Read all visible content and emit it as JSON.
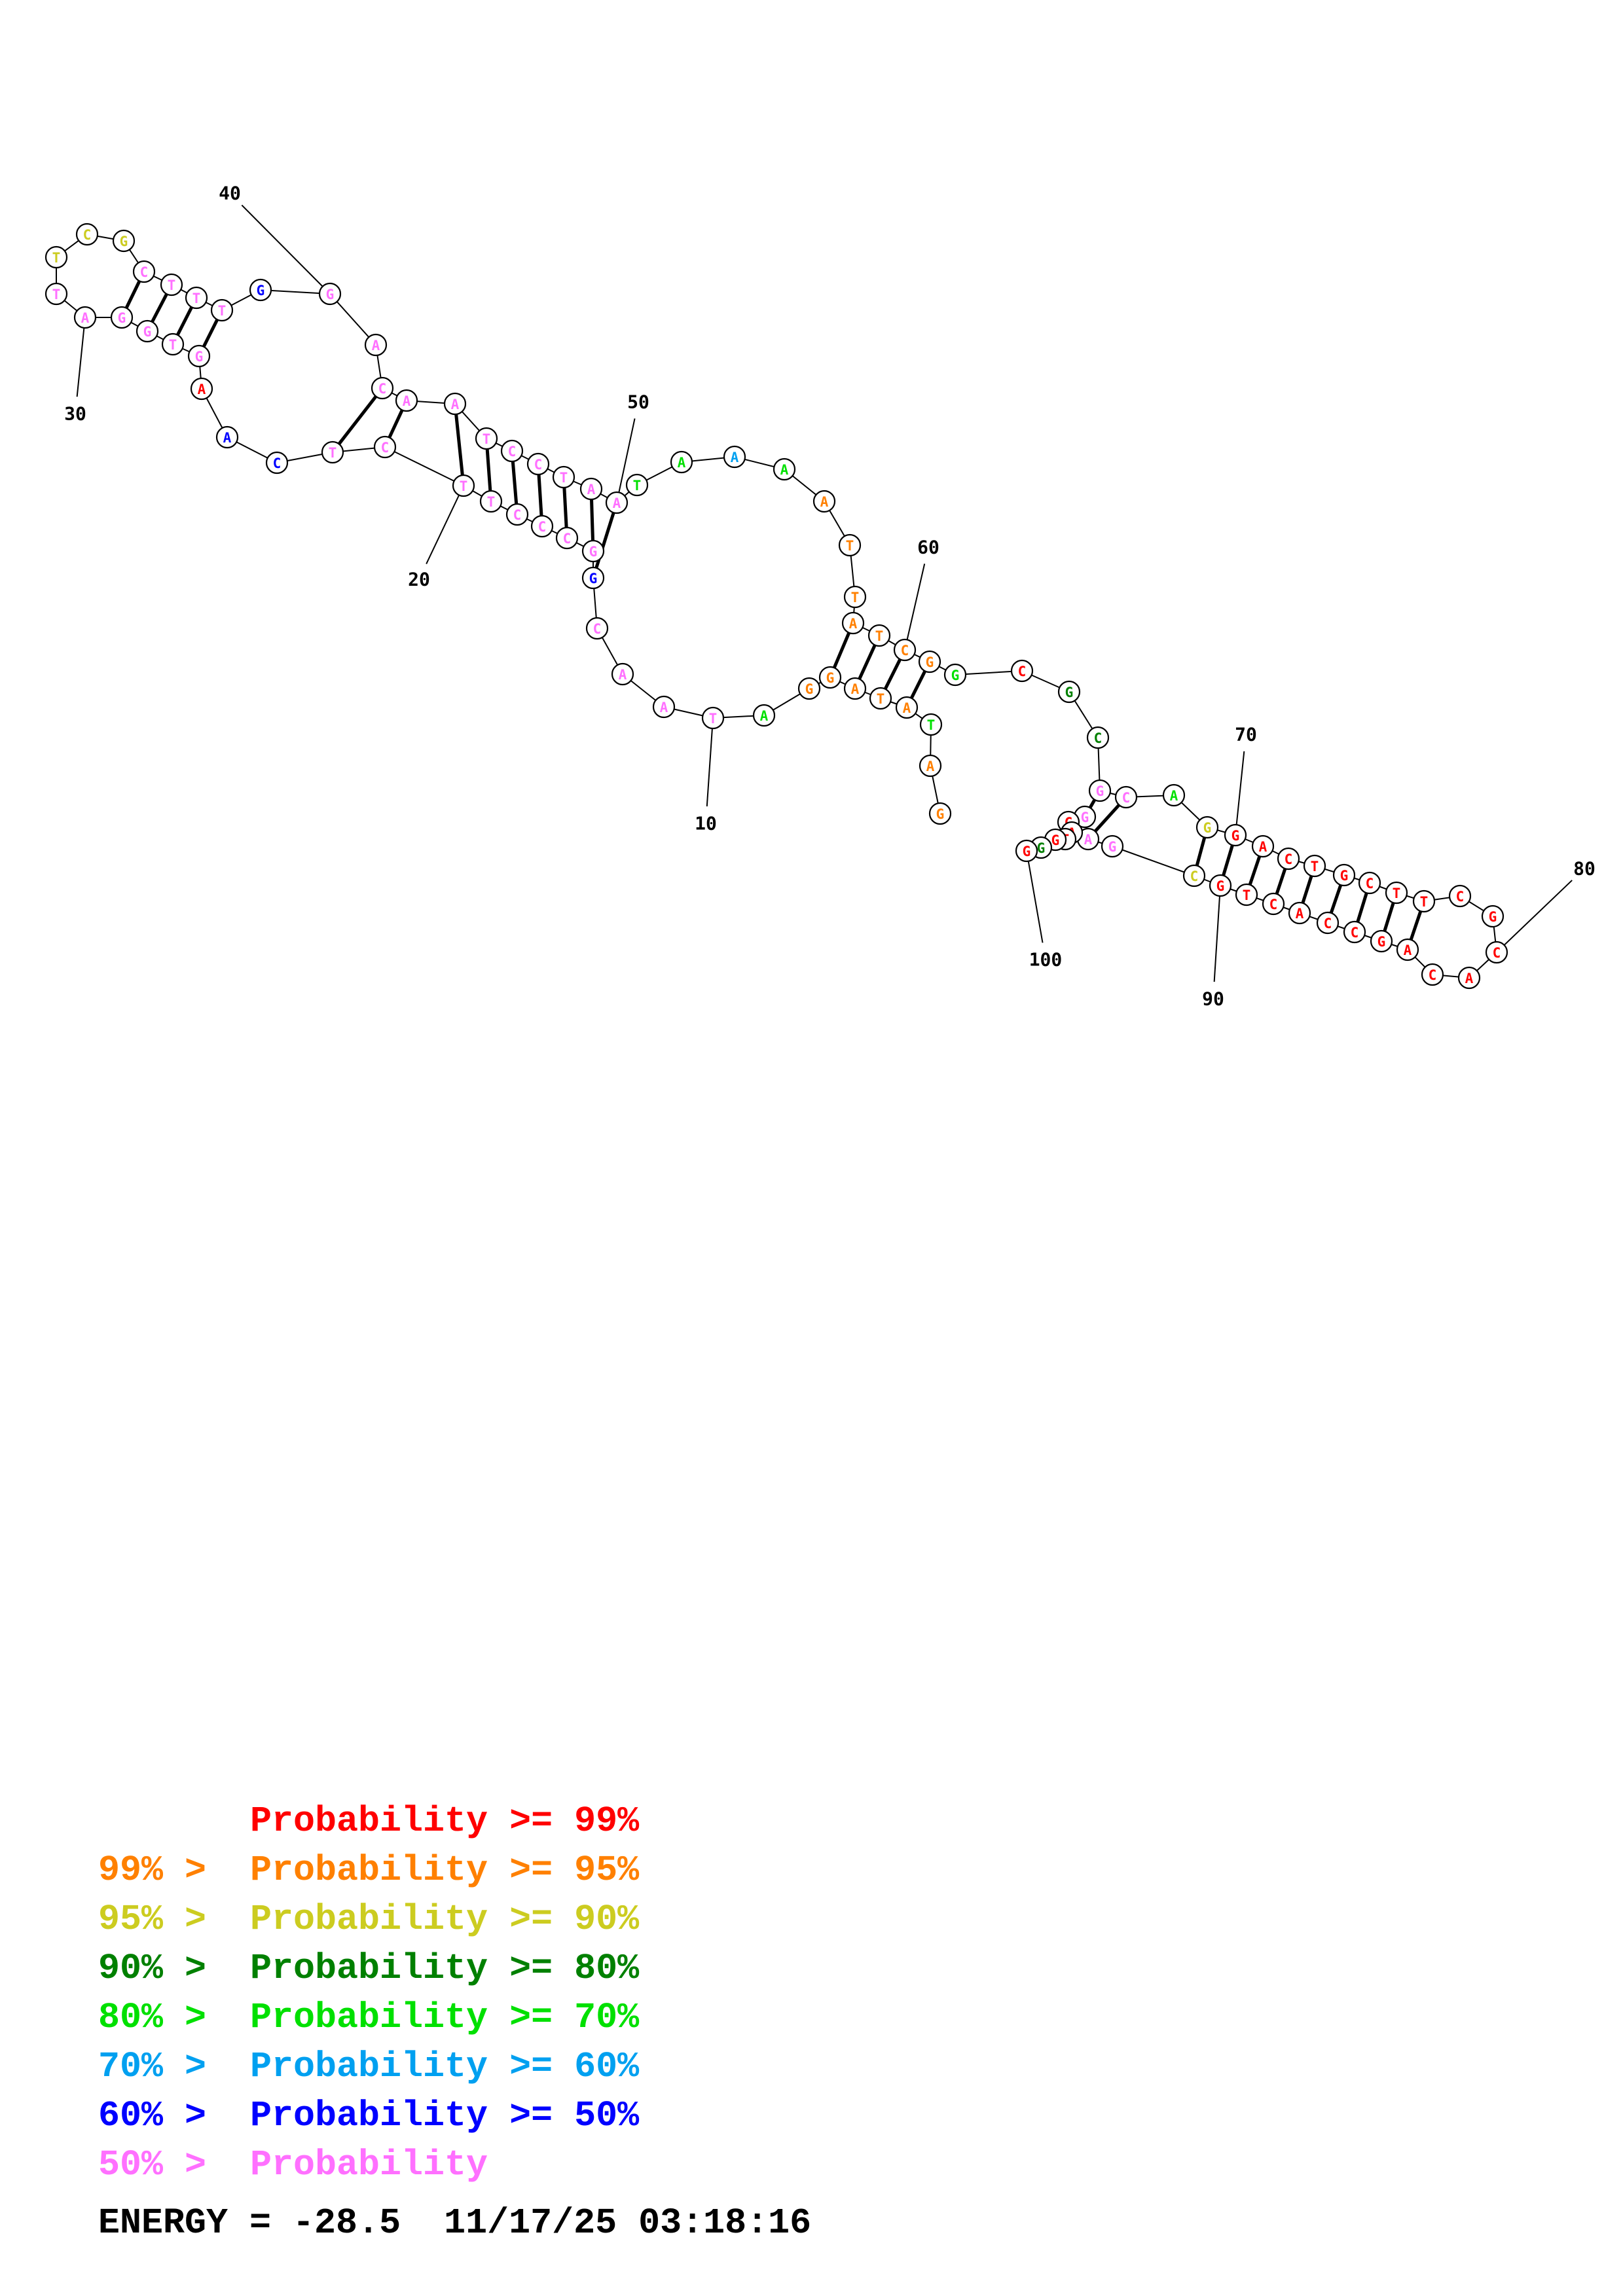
{
  "structure": {
    "sequence": "GATATAGGATAACGGCCCTTCTCAAGTGGATTCGCTTTGGACAATCCTAATAAAATTATCGGCGCGCAGGACTGCTTCGCACAGCCACTGCGAGCATGGG",
    "position_labels": [
      "10",
      "20",
      "30",
      "40",
      "50",
      "60",
      "70",
      "80",
      "90",
      "100"
    ],
    "colors": [
      "#ff00ff",
      "#ff0000",
      "#ffa500",
      "#e6e600",
      "#00c000",
      "#00ff00",
      "#00b0ff",
      "#0000ff",
      "#ff7fff"
    ]
  },
  "legend": [
    {
      "prefix": "",
      "label": "Probability >= 99%",
      "color": "#ff0000"
    },
    {
      "prefix": "99% > ",
      "label": "Probability >= 95%",
      "color": "#ff8000"
    },
    {
      "prefix": "95% > ",
      "label": "Probability >= 90%",
      "color": "#cccc20"
    },
    {
      "prefix": "90% > ",
      "label": "Probability >= 80%",
      "color": "#008000"
    },
    {
      "prefix": "80% > ",
      "label": "Probability >= 70%",
      "color": "#00e000"
    },
    {
      "prefix": "70% > ",
      "label": "Probability >= 60%",
      "color": "#00a0f0"
    },
    {
      "prefix": "60% > ",
      "label": "Probability >= 50%",
      "color": "#0000ff"
    },
    {
      "prefix": "50% > ",
      "label": "Probability",
      "color": "#ff70ff"
    }
  ],
  "energy_line": "ENERGY = -28.5  11/17/25 03:18:16"
}
